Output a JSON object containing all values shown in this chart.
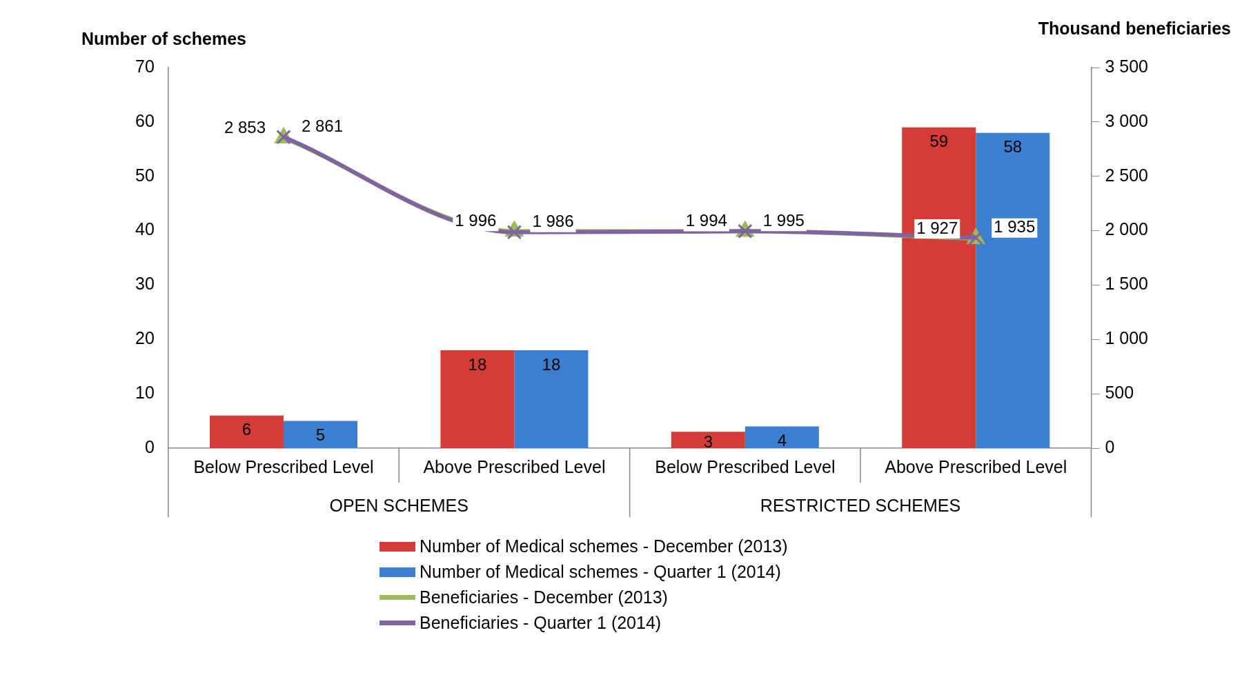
{
  "chart_data": {
    "type": "bar",
    "ylabel": "Number of schemes",
    "y2label": "Thousand beneficiaries",
    "categories": [
      "Below Prescribed Level",
      "Above Prescribed Level",
      "Below Prescribed Level",
      "Above Prescribed Level"
    ],
    "annotations": [
      "OPEN SCHEMES",
      "RESTRICTED SCHEMES"
    ],
    "series": [
      {
        "name": "Number of Medical schemes - December (2013)",
        "color": "#d63c37",
        "values": [
          6,
          18,
          3,
          59
        ],
        "value_labels": [
          "6",
          "18",
          "3",
          "59"
        ]
      },
      {
        "name": "Number of Medical schemes - Quarter 1 (2014)",
        "color": "#3b7fd1",
        "values": [
          5,
          18,
          4,
          58
        ],
        "value_labels": [
          "5",
          "18",
          "4",
          "58"
        ]
      },
      {
        "name": "Beneficiaries - December (2013)",
        "type": "line",
        "axis": "y2",
        "marker": "triangle",
        "color": "#9bbb59",
        "values": [
          2853,
          1996,
          1994,
          1927
        ],
        "value_labels": [
          "2 853",
          "1 996",
          "1 994",
          "1 927"
        ]
      },
      {
        "name": "Beneficiaries - Quarter 1 (2014)",
        "type": "line",
        "axis": "y2",
        "marker": "cross",
        "color": "#8064a2",
        "values": [
          2861,
          1986,
          1995,
          1935
        ],
        "value_labels": [
          "2 861",
          "1 986",
          "1 995",
          "1 935"
        ]
      }
    ],
    "ylim": [
      0,
      70
    ],
    "yticks": [
      0,
      10,
      20,
      30,
      40,
      50,
      60,
      70
    ],
    "y2lim": [
      0,
      3500
    ],
    "y2ticks": [
      {
        "value": 0,
        "label": "0"
      },
      {
        "value": 500,
        "label": "500"
      },
      {
        "value": 1000,
        "label": "1 000"
      },
      {
        "value": 1500,
        "label": "1 500"
      },
      {
        "value": 2000,
        "label": "2 000"
      },
      {
        "value": 2500,
        "label": "2 500"
      },
      {
        "value": 3000,
        "label": "3 000"
      },
      {
        "value": 3500,
        "label": "3 500"
      }
    ],
    "grid": false,
    "legend": "bottom"
  }
}
